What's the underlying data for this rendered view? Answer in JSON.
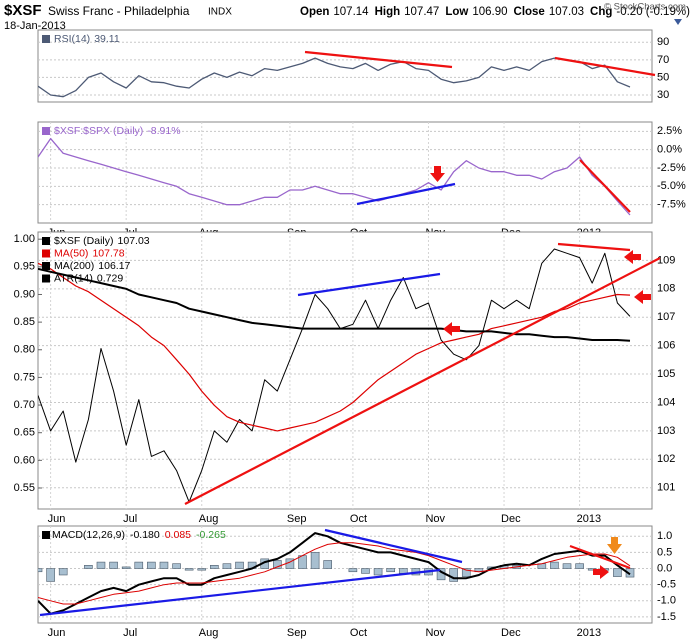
{
  "header": {
    "symbol": "$XSF",
    "name": "Swiss Franc - Philadelphia",
    "exchange": "INDX",
    "date": "18-Jan-2013",
    "credit": "© StockCharts.com",
    "quote": [
      {
        "label": "Open",
        "value": "107.14"
      },
      {
        "label": "High",
        "value": "107.47"
      },
      {
        "label": "Low",
        "value": "106.90"
      },
      {
        "label": "Close",
        "value": "107.03"
      },
      {
        "label": "Chg",
        "value": "-0.20 (-0.19%)"
      }
    ]
  },
  "chart_data": [
    {
      "type": "line",
      "grid": true,
      "ylim": [
        22,
        104
      ],
      "yticks": [
        90,
        70,
        50,
        30
      ],
      "series": [
        {
          "name": "RSI(14)",
          "last_label": "39.11",
          "color": "#4d5a75",
          "values": [
            40,
            30,
            28,
            35,
            50,
            55,
            45,
            38,
            52,
            45,
            44,
            40,
            38,
            48,
            55,
            50,
            56,
            52,
            60,
            58,
            62,
            66,
            72,
            66,
            62,
            60,
            66,
            58,
            65,
            68,
            60,
            58,
            48,
            44,
            46,
            50,
            62,
            58,
            62,
            58,
            68,
            72,
            70,
            68,
            60,
            64,
            45,
            39.11
          ]
        }
      ]
    },
    {
      "type": "line",
      "grid": true,
      "ylim": [
        -10,
        3.77
      ],
      "yticks": [
        {
          "value": 2.5,
          "label": "2.5%"
        },
        {
          "value": 0,
          "label": "0.0%"
        },
        {
          "value": -2.5,
          "label": "-2.5%"
        },
        {
          "value": -5,
          "label": "-5.0%"
        },
        {
          "value": -7.5,
          "label": "-7.5%"
        }
      ],
      "categories": [
        null,
        "Jun",
        null,
        null,
        null,
        null,
        null,
        "Jul",
        null,
        null,
        null,
        null,
        null,
        "Aug",
        null,
        null,
        null,
        null,
        null,
        null,
        "Sep",
        null,
        null,
        null,
        null,
        "Oct",
        null,
        null,
        null,
        null,
        null,
        "Nov",
        null,
        null,
        null,
        null,
        null,
        "Dec",
        null,
        null,
        null,
        null,
        null,
        "2013",
        null,
        null,
        null,
        null
      ],
      "series": [
        {
          "name": "$XSF:$SPX (Daily)",
          "last_label": "-8.91%",
          "color": "#9966cc",
          "values": [
            -1.0,
            1.5,
            -0.5,
            -1.0,
            -1.5,
            -2.0,
            -2.5,
            -3.0,
            -3.5,
            -4.0,
            -4.5,
            -5.0,
            -6.0,
            -6.5,
            -7.0,
            -7.5,
            -7.5,
            -7.0,
            -6.5,
            -6.5,
            -5.5,
            -5.5,
            -5.0,
            -5.5,
            -6.0,
            -6.0,
            -6.5,
            -7.0,
            -6.5,
            -6.0,
            -5.5,
            -4.5,
            -5.5,
            -3.0,
            -1.5,
            -2.5,
            -3.0,
            -3.0,
            -3.5,
            -3.5,
            -4.0,
            -3.0,
            -2.5,
            -1.0,
            -3.5,
            -5.0,
            -7.0,
            -8.91
          ]
        }
      ]
    },
    {
      "type": "line",
      "grid": true,
      "ylim": [
        100.25,
        110
      ],
      "yticks": [
        109,
        108,
        107,
        106,
        105,
        104,
        103,
        102,
        101
      ],
      "y2lim": [
        0.512,
        1.013
      ],
      "y2ticks": [
        {
          "value": 1,
          "label": "1.00"
        },
        0.95,
        {
          "value": 0.9,
          "label": "0.90"
        },
        0.85,
        {
          "value": 0.8,
          "label": "0.80"
        },
        0.75,
        {
          "value": 0.7,
          "label": "0.70"
        },
        0.65,
        {
          "value": 0.6,
          "label": "0.60"
        },
        0.55
      ],
      "categories": [
        null,
        "Jun",
        null,
        null,
        null,
        null,
        null,
        "Jul",
        null,
        null,
        null,
        null,
        null,
        "Aug",
        null,
        null,
        null,
        null,
        null,
        null,
        "Sep",
        null,
        null,
        null,
        null,
        "Oct",
        null,
        null,
        null,
        null,
        null,
        "Nov",
        null,
        null,
        null,
        null,
        null,
        "Dec",
        null,
        null,
        null,
        null,
        null,
        "2013",
        null,
        null,
        null,
        null
      ],
      "series": [
        {
          "name": "$XSF (Daily)",
          "last_label": "107.03",
          "color": "#000000",
          "width": 1,
          "values": [
            104.25,
            103.0,
            103.7,
            101.9,
            103.4,
            105.9,
            104.4,
            102.5,
            104.1,
            102.1,
            102.3,
            101.6,
            100.5,
            101.6,
            103.0,
            102.6,
            103.4,
            103.0,
            104.8,
            104.4,
            105.5,
            106.6,
            107.8,
            107.3,
            106.6,
            106.75,
            107.6,
            106.6,
            107.6,
            108.4,
            107.3,
            107.5,
            106.2,
            105.7,
            105.5,
            106.0,
            107.6,
            107.3,
            107.6,
            107.3,
            108.9,
            109.4,
            109.25,
            109.1,
            108.2,
            109.25,
            107.5,
            107.03
          ]
        },
        {
          "name": "MA(50)",
          "last_label": "107.78",
          "color": "#dd0000",
          "width": 1.2,
          "values": [
            108.9,
            108.7,
            108.4,
            108.1,
            107.9,
            107.6,
            107.3,
            107.0,
            106.7,
            106.3,
            106.0,
            105.5,
            105.0,
            104.4,
            103.9,
            103.5,
            103.3,
            103.2,
            103.1,
            103.0,
            103.1,
            103.2,
            103.3,
            103.5,
            103.7,
            104.0,
            104.4,
            104.8,
            105.1,
            105.4,
            105.7,
            105.9,
            106.1,
            106.2,
            106.3,
            106.4,
            106.6,
            106.7,
            106.8,
            106.9,
            107.0,
            107.2,
            107.3,
            107.5,
            107.6,
            107.7,
            107.8,
            107.78
          ]
        },
        {
          "name": "MA(200)",
          "last_label": "106.17",
          "color": "#000000",
          "width": 2,
          "values": [
            108.7,
            108.6,
            108.5,
            108.4,
            108.3,
            108.2,
            108.1,
            108.0,
            107.8,
            107.7,
            107.6,
            107.5,
            107.3,
            107.2,
            107.1,
            107.0,
            106.9,
            106.8,
            106.75,
            106.7,
            106.65,
            106.6,
            106.6,
            106.6,
            106.6,
            106.6,
            106.6,
            106.6,
            106.6,
            106.6,
            106.6,
            106.6,
            106.6,
            106.55,
            106.5,
            106.5,
            106.5,
            106.45,
            106.4,
            106.4,
            106.35,
            106.3,
            106.3,
            106.25,
            106.2,
            106.2,
            106.2,
            106.17
          ]
        },
        {
          "name": "ATR(14)",
          "last_label": "0.729",
          "color": "#000000",
          "axis": "y2"
        }
      ]
    },
    {
      "type": "macd",
      "grid": true,
      "ylim": [
        -1.69,
        1.32
      ],
      "yticks": [
        {
          "value": 1,
          "label": "1.0"
        },
        0.5,
        {
          "value": 0,
          "label": "0.0"
        },
        -0.5,
        {
          "value": -1,
          "label": "-1.0"
        },
        -1.5
      ],
      "categories": [
        null,
        "Jun",
        null,
        null,
        null,
        null,
        null,
        "Jul",
        null,
        null,
        null,
        null,
        null,
        "Aug",
        null,
        null,
        null,
        null,
        null,
        null,
        "Sep",
        null,
        null,
        null,
        null,
        "Oct",
        null,
        null,
        null,
        null,
        null,
        "Nov",
        null,
        null,
        null,
        null,
        null,
        "Dec",
        null,
        null,
        null,
        null,
        null,
        "2013",
        null,
        null,
        null,
        null
      ],
      "series": [
        {
          "name": "MACD(12,26,9)",
          "last_label": "-0.180",
          "color": "#000000",
          "width": 2,
          "values": [
            -1.0,
            -1.4,
            -1.3,
            -1.1,
            -0.9,
            -0.7,
            -0.6,
            -0.7,
            -0.5,
            -0.4,
            -0.3,
            -0.3,
            -0.5,
            -0.5,
            -0.3,
            -0.2,
            -0.1,
            0.0,
            0.2,
            0.3,
            0.5,
            0.8,
            1.1,
            1.0,
            0.8,
            0.7,
            0.6,
            0.5,
            0.5,
            0.4,
            0.3,
            0.2,
            -0.1,
            -0.3,
            -0.3,
            -0.2,
            0.0,
            0.1,
            0.15,
            0.1,
            0.3,
            0.45,
            0.5,
            0.55,
            0.4,
            0.4,
            0.1,
            -0.18
          ]
        },
        {
          "last_label": "0.085",
          "color": "#dd0000",
          "width": 1,
          "values": [
            -0.9,
            -1.0,
            -1.1,
            -1.1,
            -1.0,
            -0.9,
            -0.8,
            -0.75,
            -0.7,
            -0.6,
            -0.5,
            -0.45,
            -0.45,
            -0.45,
            -0.4,
            -0.35,
            -0.3,
            -0.2,
            -0.1,
            0.05,
            0.2,
            0.4,
            0.6,
            0.75,
            0.8,
            0.8,
            0.75,
            0.7,
            0.6,
            0.55,
            0.5,
            0.4,
            0.25,
            0.1,
            -0.05,
            -0.1,
            -0.05,
            0.0,
            0.05,
            0.1,
            0.15,
            0.25,
            0.35,
            0.4,
            0.45,
            0.45,
            0.35,
            0.085
          ]
        },
        {
          "last_label": "-0.265",
          "color": "#339933",
          "fill": "#a8bfd0",
          "kind": "bar",
          "values": [
            -0.1,
            -0.4,
            -0.2,
            0.0,
            0.1,
            0.2,
            0.2,
            0.05,
            0.2,
            0.2,
            0.2,
            0.15,
            -0.05,
            -0.05,
            0.1,
            0.15,
            0.2,
            0.2,
            0.3,
            0.25,
            0.3,
            0.4,
            0.5,
            0.25,
            0.0,
            -0.1,
            -0.15,
            -0.2,
            -0.1,
            -0.15,
            -0.2,
            -0.2,
            -0.35,
            -0.4,
            -0.25,
            -0.1,
            0.05,
            0.1,
            0.1,
            0.0,
            0.15,
            0.2,
            0.15,
            0.15,
            -0.05,
            -0.05,
            -0.25,
            -0.265
          ]
        }
      ]
    }
  ]
}
